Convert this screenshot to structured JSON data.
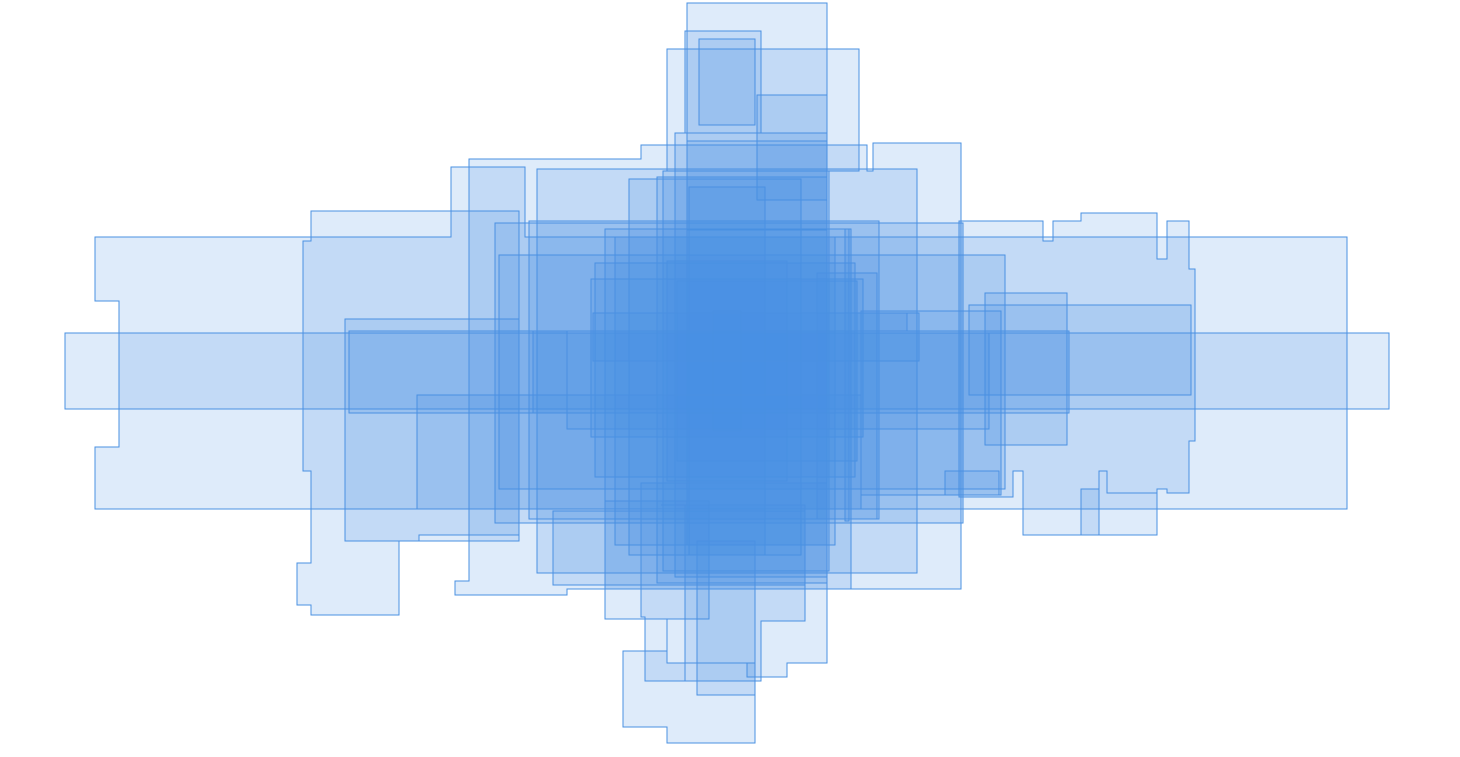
{
  "canvas": {
    "background": "#ffffff",
    "shape_fill": "#4a90e2",
    "shape_stroke": "#4a90e2",
    "shape_count": 46
  }
}
